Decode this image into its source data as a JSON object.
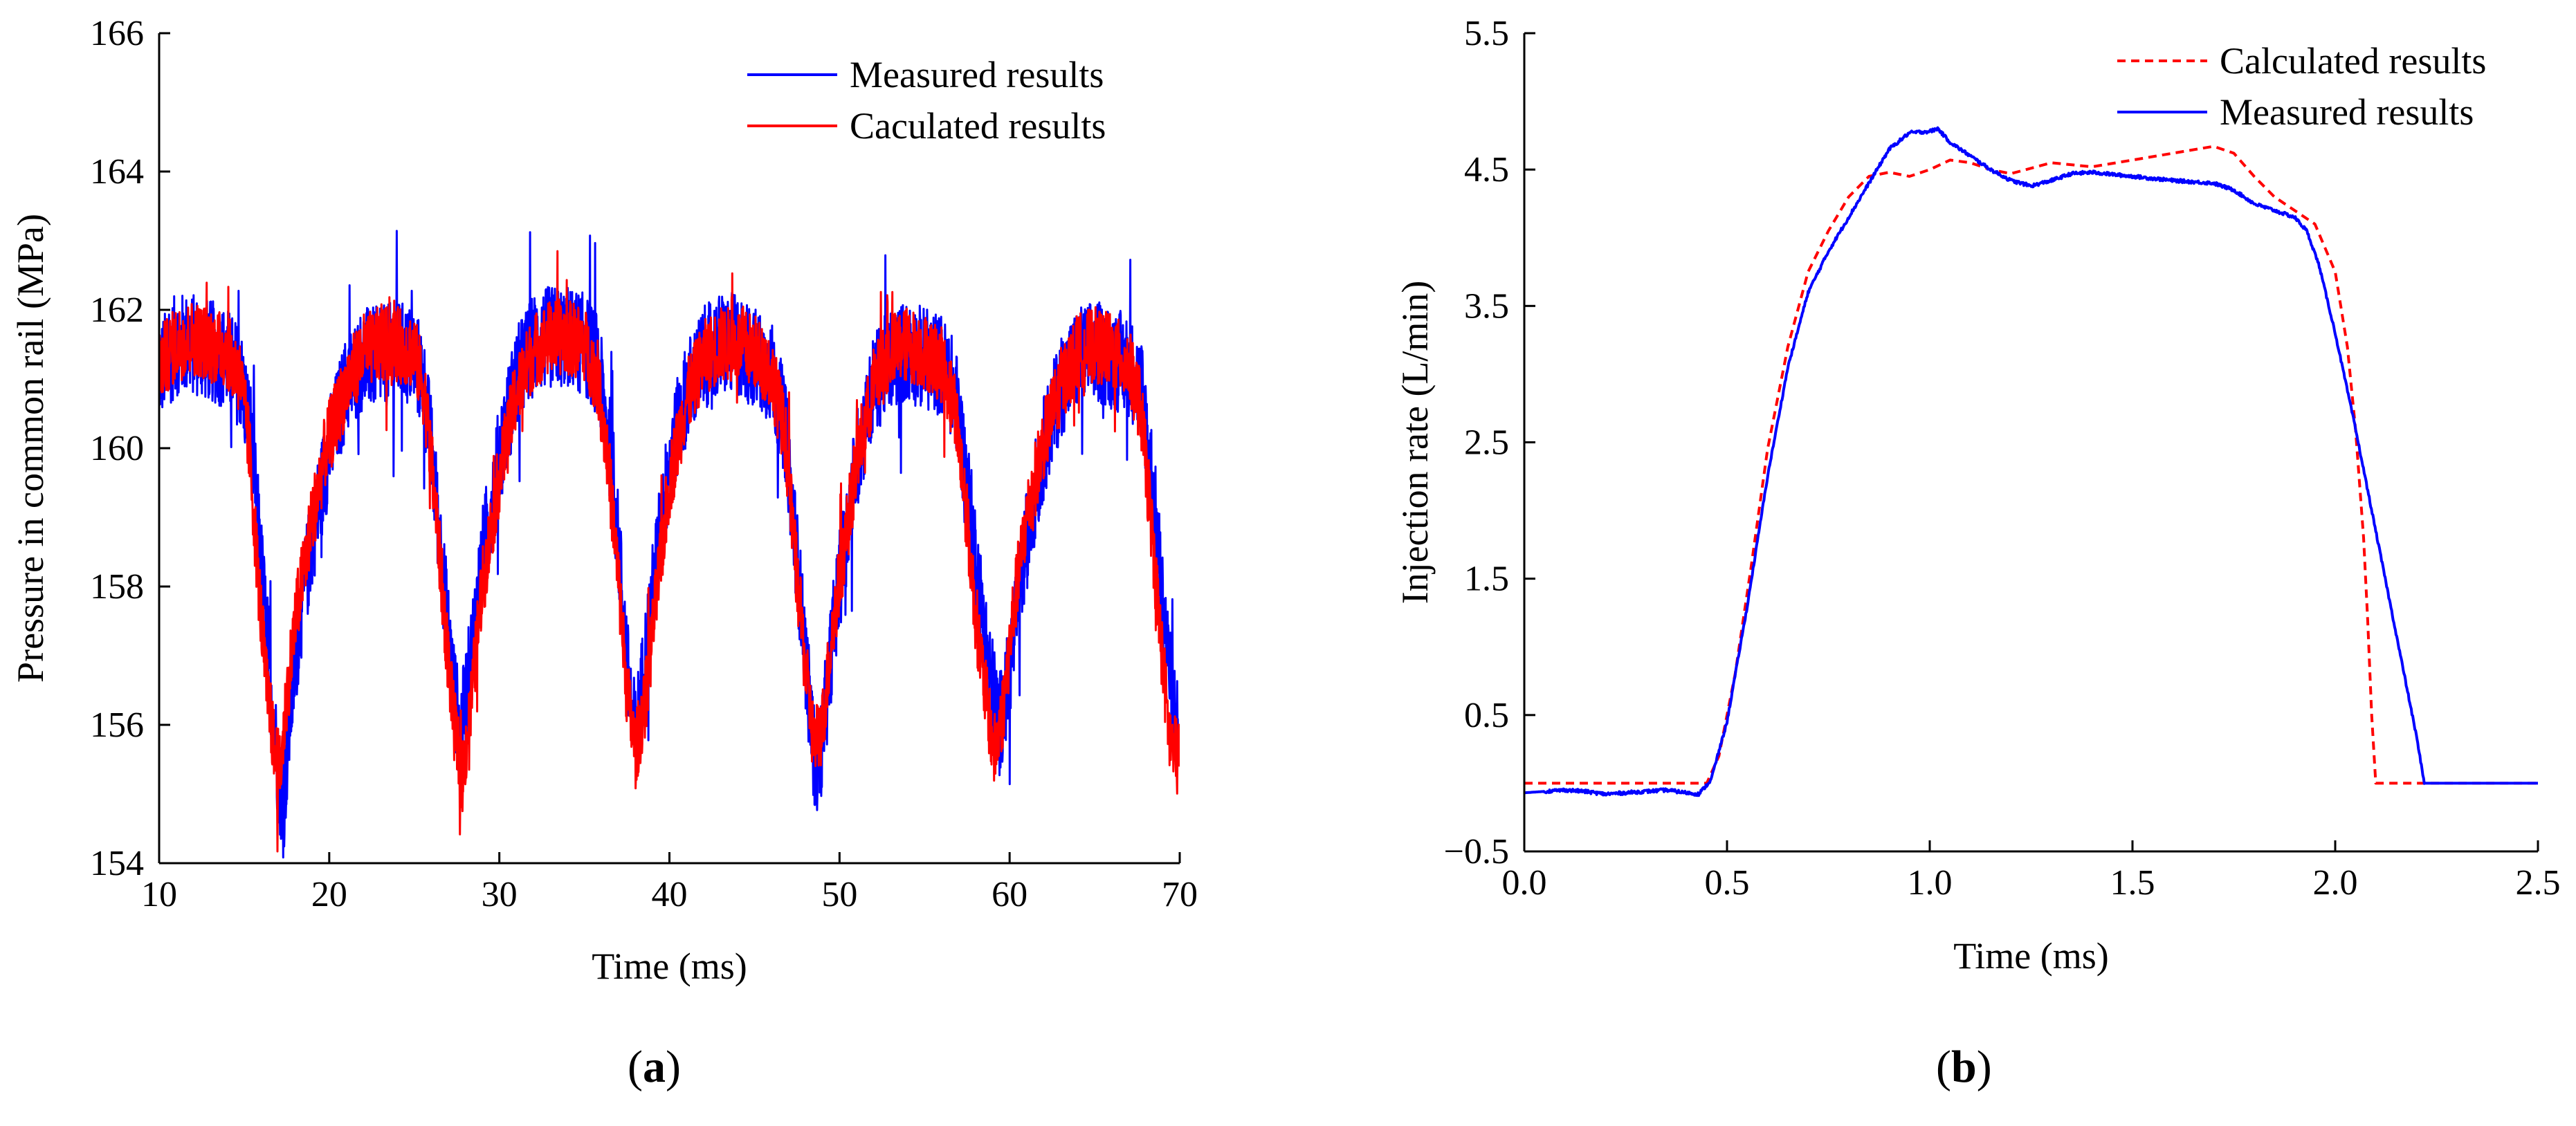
{
  "chart_data": [
    {
      "type": "line",
      "panel_label": "a",
      "title": "",
      "xlabel": "Time (ms)",
      "ylabel": "Pressure in common rail (MPa)",
      "xlim": [
        10,
        70
      ],
      "ylim": [
        154,
        166
      ],
      "xticks": [
        10,
        20,
        30,
        40,
        50,
        60,
        70
      ],
      "yticks": [
        154,
        156,
        158,
        160,
        162,
        164,
        166
      ],
      "grid": false,
      "legend_position": "top-right",
      "series": [
        {
          "name": "Measured results",
          "color": "#0000ff",
          "dash": "solid",
          "noise": 0.75,
          "x": [
            10,
            11,
            12,
            13,
            14,
            14.8,
            15.4,
            16.0,
            16.5,
            17.0,
            17.3,
            17.7,
            18.3,
            19.0,
            20.0,
            21.0,
            22.0,
            23.0,
            24.0,
            25.0,
            25.5,
            26.0,
            26.6,
            27.2,
            27.7,
            28.2,
            29.0,
            30.0,
            31.0,
            32.0,
            33.0,
            34.0,
            35.0,
            35.8,
            36.5,
            37.1,
            37.6,
            38.0,
            38.5,
            39.2,
            40.0,
            41.0,
            42.0,
            43.0,
            44.0,
            45.0,
            46.0,
            46.8,
            47.5,
            48.2,
            48.6,
            49.0,
            49.6,
            50.3,
            51.0,
            52.0,
            53.0,
            54.0,
            55.0,
            56.0,
            56.8,
            57.5,
            58.2,
            58.8,
            59.4,
            59.9,
            60.5,
            61.2,
            62.0,
            63.0,
            64.0,
            65.0,
            66.0,
            67.0,
            67.8,
            68.4,
            69.0,
            69.5,
            70.0
          ],
          "y": [
            161.1,
            161.5,
            161.5,
            161.4,
            161.3,
            161.0,
            160.2,
            158.3,
            156.8,
            155.3,
            154.8,
            156.2,
            157.6,
            158.7,
            160.0,
            160.9,
            161.3,
            161.3,
            161.4,
            161.3,
            161.0,
            160.0,
            158.4,
            156.8,
            155.8,
            156.7,
            158.4,
            159.9,
            161.0,
            161.5,
            161.6,
            161.6,
            161.5,
            161.2,
            160.0,
            158.3,
            156.6,
            155.8,
            156.8,
            158.3,
            159.8,
            160.8,
            161.3,
            161.5,
            161.5,
            161.3,
            161.1,
            160.3,
            158.4,
            156.4,
            155.3,
            155.8,
            157.3,
            158.6,
            159.8,
            160.9,
            161.3,
            161.4,
            161.3,
            161.2,
            160.8,
            159.5,
            158.0,
            156.8,
            156.0,
            156.6,
            157.8,
            159.0,
            160.0,
            160.9,
            161.3,
            161.4,
            161.3,
            161.2,
            160.8,
            159.5,
            157.8,
            156.5,
            155.8
          ]
        },
        {
          "name": "Caculated results",
          "color": "#ff0000",
          "dash": "solid",
          "noise": 0.55,
          "x": [
            10,
            11,
            12,
            13,
            14,
            14.8,
            15.3,
            15.8,
            16.3,
            16.8,
            17.1,
            17.5,
            18.0,
            18.8,
            19.8,
            21.0,
            22.0,
            23.0,
            24.0,
            25.0,
            25.6,
            26.2,
            26.8,
            27.3,
            27.8,
            28.3,
            29.0,
            30.0,
            31.0,
            32.0,
            33.0,
            34.0,
            35.0,
            35.8,
            36.4,
            37.0,
            37.5,
            38.0,
            38.6,
            39.3,
            40.0,
            41.0,
            42.0,
            43.0,
            44.0,
            45.0,
            46.0,
            46.8,
            47.4,
            48.0,
            48.5,
            49.0,
            49.6,
            50.3,
            51.0,
            52.0,
            53.0,
            54.0,
            55.0,
            56.0,
            56.8,
            57.4,
            58.0,
            58.6,
            59.1,
            59.6,
            60.2,
            61.0,
            62.0,
            63.0,
            64.0,
            65.0,
            66.0,
            67.0,
            67.7,
            68.3,
            68.9,
            69.4,
            70.0
          ],
          "y": [
            161.2,
            161.5,
            161.6,
            161.5,
            161.4,
            161.0,
            160.0,
            158.2,
            156.6,
            155.6,
            155.3,
            156.4,
            157.5,
            158.7,
            160.0,
            160.9,
            161.4,
            161.5,
            161.5,
            161.4,
            160.8,
            159.3,
            157.5,
            156.1,
            155.2,
            156.2,
            158.0,
            159.6,
            160.8,
            161.4,
            161.6,
            161.6,
            161.5,
            161.0,
            159.8,
            158.1,
            156.5,
            155.6,
            156.4,
            158.0,
            159.5,
            160.7,
            161.3,
            161.5,
            161.5,
            161.4,
            161.1,
            160.2,
            158.4,
            156.8,
            155.7,
            156.0,
            157.4,
            158.6,
            159.8,
            160.9,
            161.4,
            161.5,
            161.4,
            161.2,
            160.6,
            159.2,
            157.6,
            156.4,
            155.6,
            156.2,
            157.6,
            159.0,
            160.1,
            160.9,
            161.4,
            161.5,
            161.4,
            161.2,
            160.6,
            159.0,
            157.2,
            155.8,
            155.4
          ]
        }
      ]
    },
    {
      "type": "line",
      "panel_label": "b",
      "title": "",
      "xlabel": "Time (ms)",
      "ylabel": "Injection rate (L/min)",
      "xlim": [
        0.0,
        2.5
      ],
      "ylim": [
        -0.5,
        5.5
      ],
      "xticks": [
        "0.0",
        "0.5",
        "1.0",
        "1.5",
        "2.0",
        "2.5"
      ],
      "yticks": [
        "−0.5",
        "0.5",
        "1.5",
        "2.5",
        "3.5",
        "4.5",
        "5.5"
      ],
      "grid": false,
      "legend_position": "top-right",
      "series": [
        {
          "name": "Calculated results",
          "color": "#ff0000",
          "dash": "dashed",
          "noise": 0,
          "x": [
            0.0,
            0.45,
            0.48,
            0.52,
            0.56,
            0.6,
            0.65,
            0.7,
            0.75,
            0.8,
            0.85,
            0.9,
            0.95,
            1.0,
            1.05,
            1.1,
            1.15,
            1.2,
            1.3,
            1.4,
            1.5,
            1.6,
            1.7,
            1.75,
            1.8,
            1.85,
            1.9,
            1.95,
            2.0,
            2.03,
            2.05,
            2.07,
            2.08,
            2.09,
            2.1,
            2.5
          ],
          "y": [
            0.0,
            0.0,
            0.2,
            0.8,
            1.6,
            2.45,
            3.2,
            3.75,
            4.05,
            4.3,
            4.45,
            4.48,
            4.45,
            4.5,
            4.57,
            4.55,
            4.5,
            4.47,
            4.55,
            4.52,
            4.57,
            4.62,
            4.67,
            4.62,
            4.45,
            4.3,
            4.2,
            4.1,
            3.75,
            3.2,
            2.6,
            1.8,
            1.2,
            0.5,
            0.0,
            0.0
          ]
        },
        {
          "name": "Measured results",
          "color": "#0000ff",
          "dash": "solid",
          "noise": 0.012,
          "x": [
            0.0,
            0.05,
            0.1,
            0.15,
            0.2,
            0.25,
            0.3,
            0.35,
            0.4,
            0.43,
            0.46,
            0.5,
            0.55,
            0.6,
            0.65,
            0.7,
            0.75,
            0.8,
            0.85,
            0.9,
            0.95,
            1.0,
            1.02,
            1.05,
            1.1,
            1.15,
            1.2,
            1.25,
            1.3,
            1.35,
            1.4,
            1.5,
            1.6,
            1.7,
            1.75,
            1.8,
            1.85,
            1.9,
            1.93,
            1.96,
            2.0,
            2.05,
            2.1,
            2.15,
            2.2,
            2.22,
            2.5
          ],
          "y": [
            -0.07,
            -0.06,
            -0.05,
            -0.06,
            -0.08,
            -0.07,
            -0.06,
            -0.05,
            -0.07,
            -0.08,
            0.02,
            0.45,
            1.3,
            2.25,
            3.05,
            3.6,
            3.9,
            4.15,
            4.4,
            4.65,
            4.77,
            4.78,
            4.8,
            4.7,
            4.6,
            4.5,
            4.42,
            4.38,
            4.42,
            4.47,
            4.48,
            4.45,
            4.42,
            4.4,
            4.35,
            4.25,
            4.2,
            4.15,
            4.05,
            3.8,
            3.3,
            2.6,
            1.85,
            1.1,
            0.35,
            0.0,
            0.0
          ]
        }
      ]
    }
  ],
  "captions": {
    "a": {
      "open": "(",
      "letter": "a",
      "close": ")"
    },
    "b": {
      "open": "(",
      "letter": "b",
      "close": ")"
    }
  }
}
